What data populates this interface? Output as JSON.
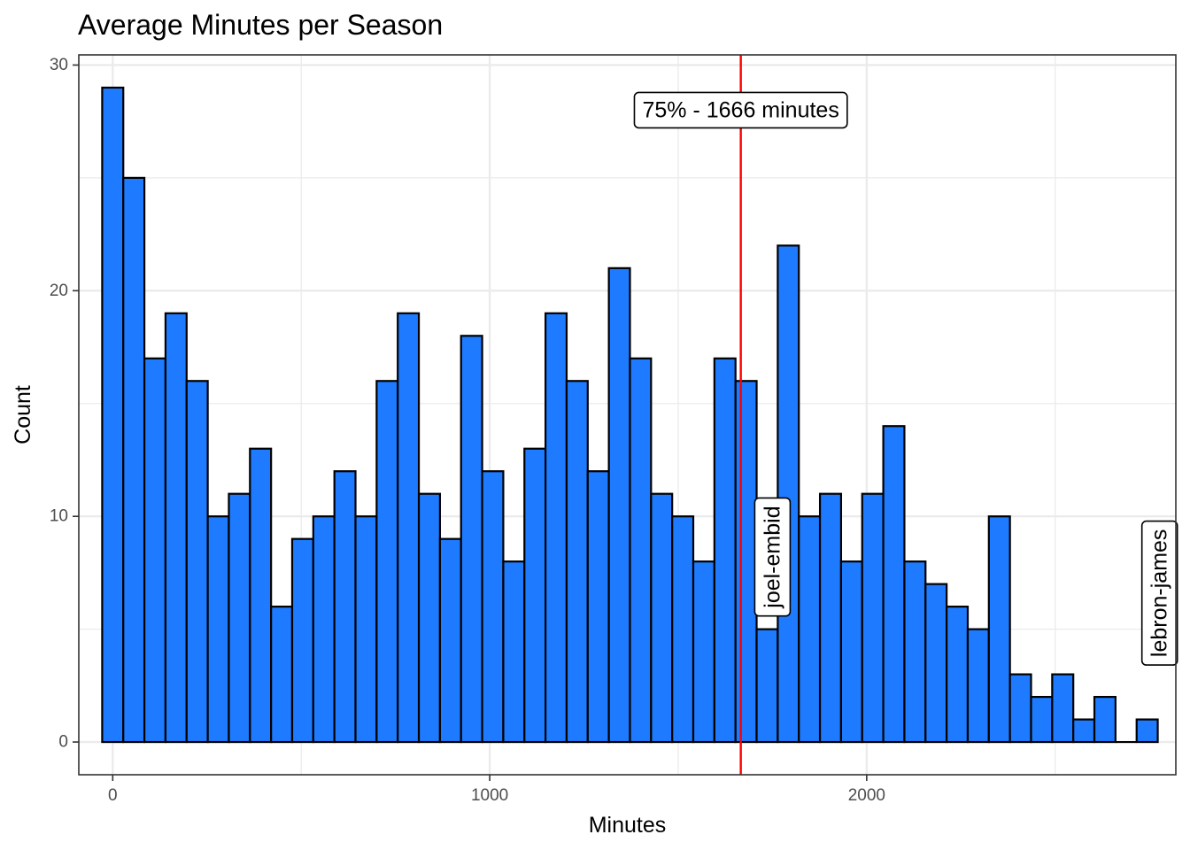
{
  "chart_data": {
    "type": "bar",
    "title": "Average Minutes per Season",
    "xlabel": "Minutes",
    "ylabel": "Count",
    "xlim": [
      -90,
      2820
    ],
    "ylim": [
      -1.45,
      30.45
    ],
    "x_ticks": [
      0,
      1000,
      2000
    ],
    "y_ticks": [
      0,
      10,
      20,
      30
    ],
    "grid": true,
    "bin_width": 56,
    "bin_centers": [
      0,
      56,
      112,
      168,
      224,
      280,
      336,
      392,
      448,
      504,
      560,
      616,
      672,
      728,
      784,
      840,
      896,
      952,
      1008,
      1064,
      1120,
      1176,
      1232,
      1288,
      1344,
      1400,
      1456,
      1512,
      1568,
      1624,
      1680,
      1736,
      1792,
      1848,
      1904,
      1960,
      2016,
      2072,
      2128,
      2184,
      2240,
      2296,
      2352,
      2408,
      2464,
      2520,
      2576,
      2632,
      2688,
      2744
    ],
    "values": [
      29,
      25,
      17,
      19,
      16,
      10,
      11,
      13,
      6,
      9,
      10,
      12,
      10,
      16,
      19,
      11,
      9,
      18,
      12,
      8,
      13,
      19,
      16,
      12,
      21,
      17,
      11,
      10,
      8,
      17,
      16,
      5,
      22,
      10,
      11,
      8,
      11,
      14,
      8,
      7,
      6,
      5,
      10,
      3,
      2,
      3,
      1,
      2,
      0,
      1
    ],
    "fill_color": "#1E7BFF",
    "edge_color": "#000000",
    "vline": {
      "x": 1666,
      "color": "#FF0000"
    },
    "annotations": [
      {
        "text": "75% - 1666 minutes",
        "x": 1666,
        "y": 28,
        "rotation": 0
      },
      {
        "text": "joel-embid",
        "x": 1750,
        "y": 8.2,
        "rotation": 90
      },
      {
        "text": "lebron-james",
        "x": 2777,
        "y": 6.6,
        "rotation": 90
      }
    ]
  }
}
